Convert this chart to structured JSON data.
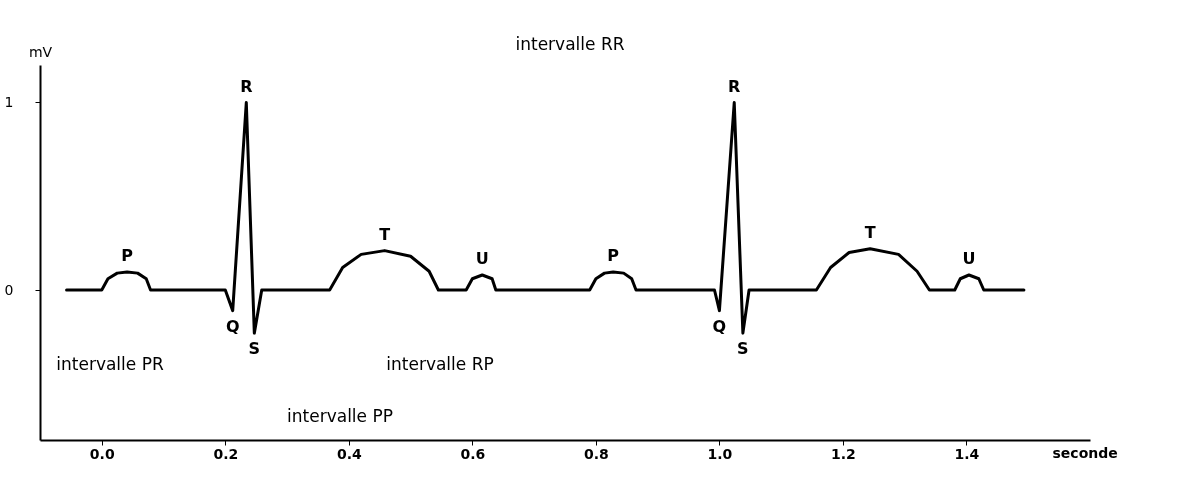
{
  "chart_data": {
    "type": "line",
    "xlabel": "seconde",
    "ylabel": "mV",
    "x": [
      -0.057,
      0.0,
      0.01,
      0.025,
      0.041,
      0.058,
      0.072,
      0.079,
      0.2,
      0.212,
      0.234,
      0.247,
      0.259,
      0.369,
      0.39,
      0.42,
      0.458,
      0.5,
      0.53,
      0.545,
      0.59,
      0.6,
      0.616,
      0.632,
      0.638,
      0.79,
      0.8,
      0.814,
      0.828,
      0.845,
      0.858,
      0.865,
      0.992,
      1.0,
      1.024,
      1.038,
      1.048,
      1.157,
      1.18,
      1.21,
      1.244,
      1.29,
      1.32,
      1.34,
      1.381,
      1.39,
      1.404,
      1.42,
      1.428,
      1.493
    ],
    "series": [
      {
        "color": "#000000",
        "values": [
          0,
          0,
          0.06,
          0.09,
          0.096,
          0.09,
          0.06,
          0,
          0,
          -0.11,
          1.0,
          -0.23,
          0,
          0,
          0.12,
          0.19,
          0.21,
          0.18,
          0.1,
          0,
          0,
          0.06,
          0.08,
          0.06,
          0,
          0,
          0.06,
          0.09,
          0.096,
          0.09,
          0.06,
          0,
          0,
          -0.11,
          1.0,
          -0.23,
          0,
          0,
          0.12,
          0.2,
          0.22,
          0.19,
          0.1,
          0,
          0,
          0.06,
          0.08,
          0.06,
          0,
          0
        ]
      }
    ],
    "xlim": [
      -0.1,
      1.6
    ],
    "ylim": [
      -0.8,
      1.2
    ],
    "xticks": [
      {
        "value": 0,
        "label": "0.0"
      },
      0.2,
      0.4,
      0.6,
      0.8,
      {
        "value": 1,
        "label": "1.0"
      },
      1.2,
      1.4
    ],
    "yticks": [
      0,
      1
    ],
    "grid": false,
    "marker": "none",
    "line_style": "solid",
    "annotations": [
      {
        "text": "P",
        "x": 0.041,
        "y": 0.096
      },
      {
        "text": "Q",
        "x": 0.212,
        "y": -0.11
      },
      {
        "text": "R",
        "x": 0.234,
        "y": 1.0
      },
      {
        "text": "S",
        "x": 0.247,
        "y": -0.23
      },
      {
        "text": "T",
        "x": 0.458,
        "y": 0.21
      },
      {
        "text": "U",
        "x": 0.616,
        "y": 0.08
      },
      {
        "text": "P",
        "x": 0.828,
        "y": 0.096
      },
      {
        "text": "Q",
        "x": 1.0,
        "y": -0.11
      },
      {
        "text": "R",
        "x": 1.024,
        "y": 1.0
      },
      {
        "text": "S",
        "x": 1.038,
        "y": -0.23
      },
      {
        "text": "T",
        "x": 1.244,
        "y": 0.22
      },
      {
        "text": "U",
        "x": 1.404,
        "y": 0.08
      },
      "intervalle RR",
      "intervalle PR",
      "intervalle RP",
      "intervalle PP"
    ]
  }
}
